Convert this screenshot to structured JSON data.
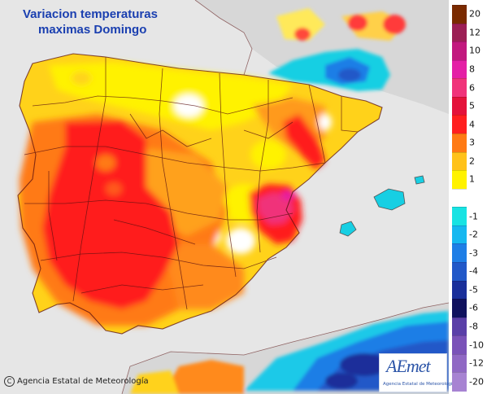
{
  "title": {
    "line1": "Variacion temperaturas",
    "line2": "maximas Domingo"
  },
  "credit": "Agencia Estatal de Meteorología",
  "logo": {
    "mark": "AEmet",
    "sub": "Agencia Estatal de Meteorología"
  },
  "legend": [
    {
      "label": "20",
      "color": "#7a2a00"
    },
    {
      "label": "12",
      "color": "#9c1f55"
    },
    {
      "label": "10",
      "color": "#c2187e"
    },
    {
      "label": "8",
      "color": "#e41fa6"
    },
    {
      "label": "6",
      "color": "#f0337a"
    },
    {
      "label": "5",
      "color": "#e4123a"
    },
    {
      "label": "4",
      "color": "#ff1f1f"
    },
    {
      "label": "3",
      "color": "#ff7a14"
    },
    {
      "label": "2",
      "color": "#ffc21a"
    },
    {
      "label": "1",
      "color": "#fff200"
    },
    {
      "label": "",
      "color": "#ffffff"
    },
    {
      "label": "-1",
      "color": "#18e3e3"
    },
    {
      "label": "-2",
      "color": "#16b8f0"
    },
    {
      "label": "-3",
      "color": "#1e7ee6"
    },
    {
      "label": "-4",
      "color": "#2158c8"
    },
    {
      "label": "-5",
      "color": "#1a2f9a"
    },
    {
      "label": "-6",
      "color": "#10125e"
    },
    {
      "label": "-8",
      "color": "#5a3fa8"
    },
    {
      "label": "-10",
      "color": "#7a52b8"
    },
    {
      "label": "-12",
      "color": "#9068c4"
    },
    {
      "label": "-20",
      "color": "#a783d2"
    }
  ]
}
